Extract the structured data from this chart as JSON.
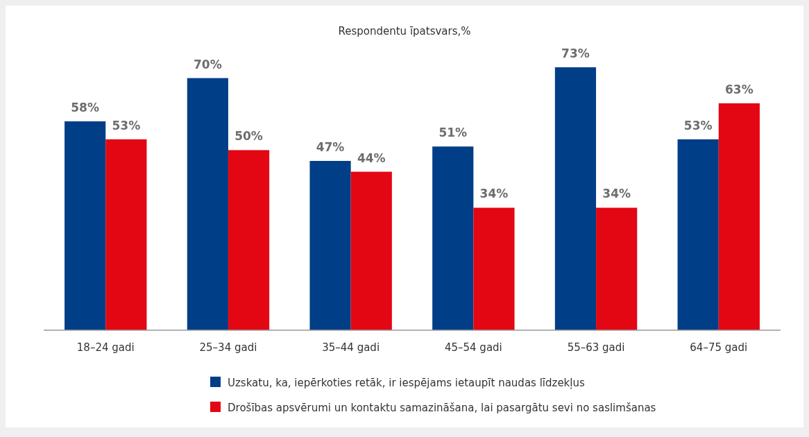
{
  "chart_data": {
    "type": "bar",
    "title": "Respondentu īpatsvars,%",
    "categories": [
      "18–24 gadi",
      "25–34 gadi",
      "35–44 gadi",
      "45–54 gadi",
      "55–63 gadi",
      "64–75 gadi"
    ],
    "series": [
      {
        "name": "Uzskatu, ka, iepērkoties retāk, ir iespējams ietaupīt naudas līdzekļus",
        "color": "#003f87",
        "values": [
          58,
          70,
          47,
          51,
          73,
          53
        ],
        "value_labels": [
          "58%",
          "70%",
          "47%",
          "51%",
          "73%",
          "53%"
        ]
      },
      {
        "name": "Drošības apsvērumi un kontaktu samazināšana, lai pasargātu sevi no saslimšanas",
        "color": "#e30613",
        "values": [
          53,
          50,
          44,
          34,
          34,
          63
        ],
        "value_labels": [
          "53%",
          "50%",
          "44%",
          "34%",
          "34%",
          "63%"
        ]
      }
    ],
    "legend": "bottom"
  }
}
